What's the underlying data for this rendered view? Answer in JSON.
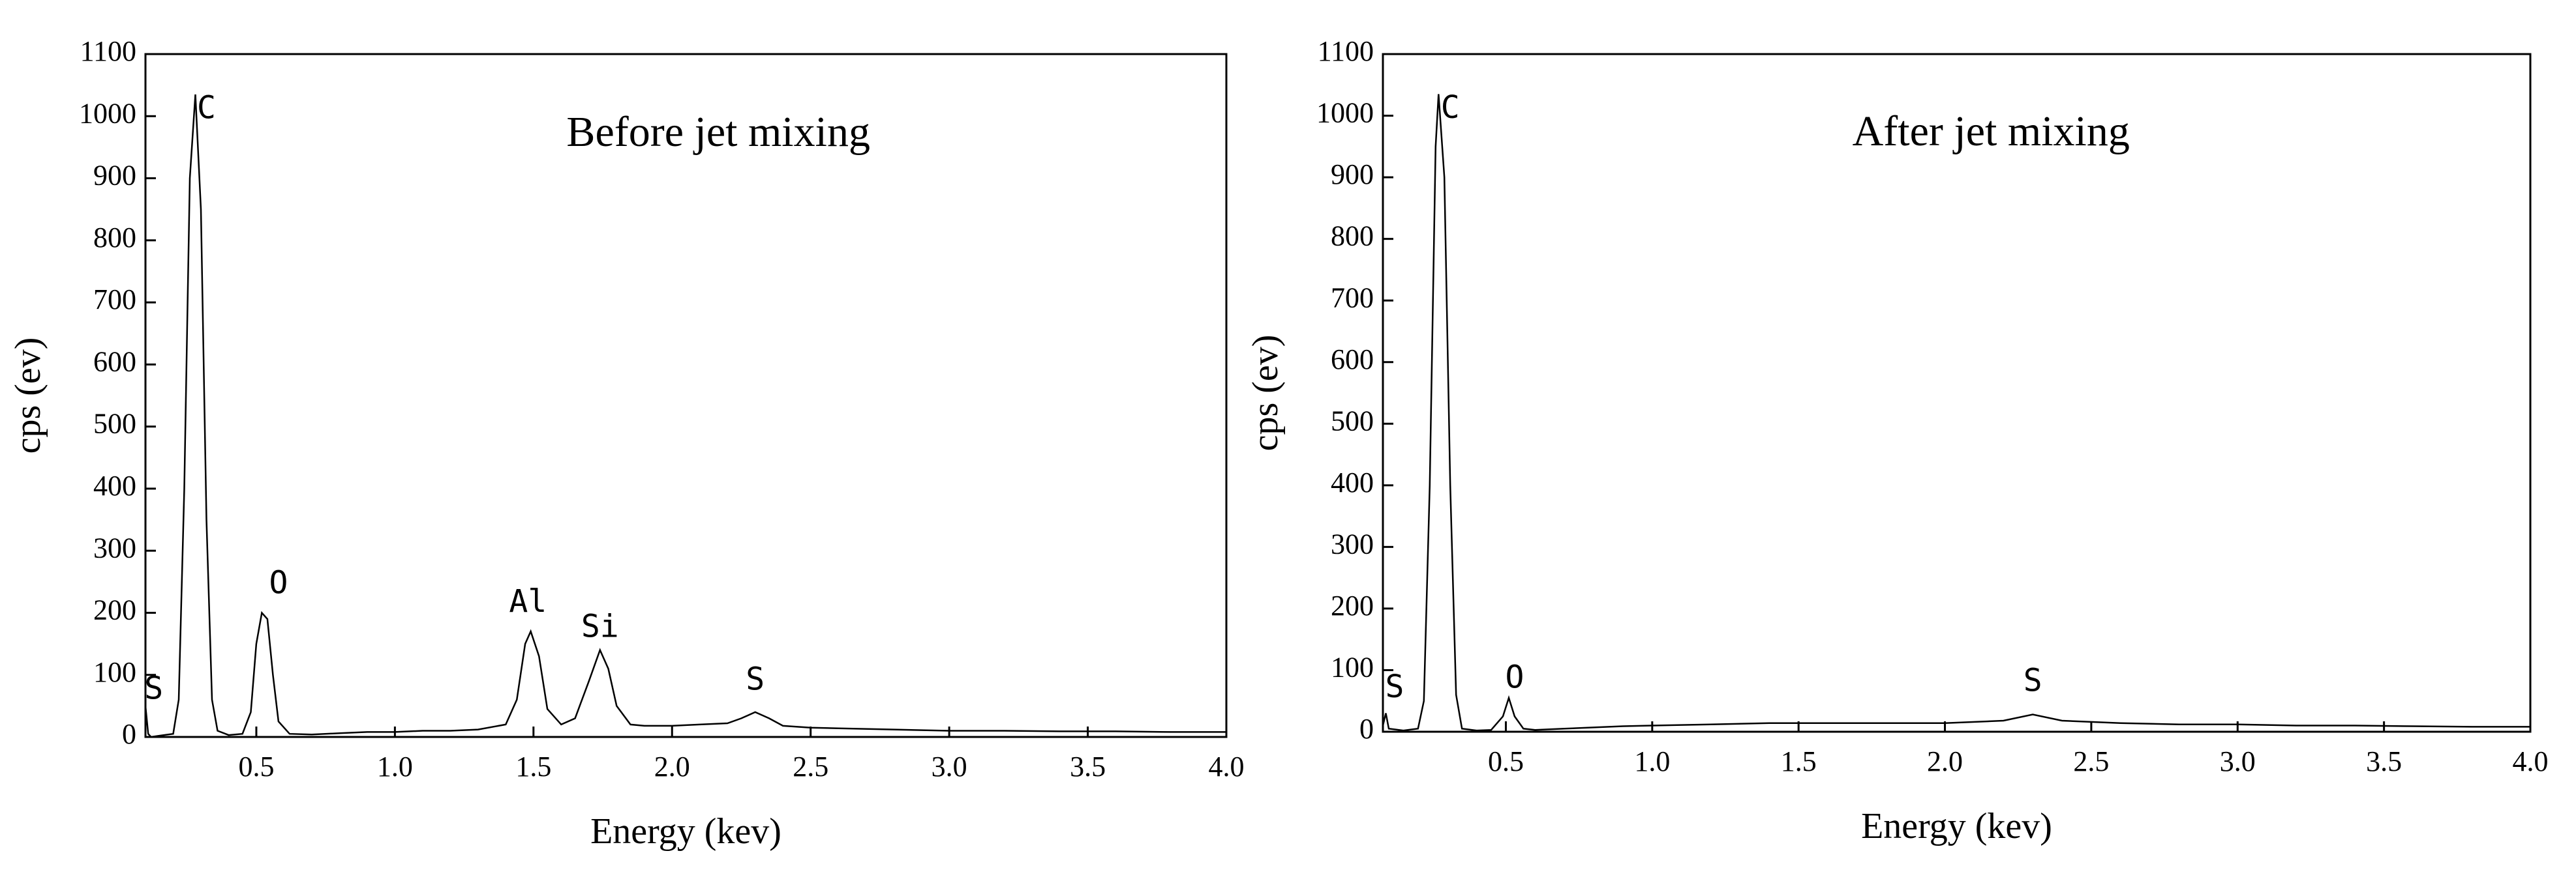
{
  "chart_data": [
    {
      "type": "line",
      "title": "Before jet mixing",
      "xlabel": "Energy (kev)",
      "ylabel": "cps (ev)",
      "color": "#000000",
      "xlim": [
        0.1,
        4.0
      ],
      "ylim": [
        0,
        1100
      ],
      "xticks": [
        0.5,
        {
          "value": 1,
          "label": "1.0"
        },
        1.5,
        {
          "value": 2,
          "label": "2.0"
        },
        2.5,
        {
          "value": 3,
          "label": "3.0"
        },
        3.5,
        {
          "value": 4,
          "label": "4.0"
        }
      ],
      "yticks": [
        0,
        100,
        200,
        300,
        400,
        500,
        600,
        700,
        800,
        900,
        1000,
        1100
      ],
      "x": [
        0.1,
        0.11,
        0.12,
        0.15,
        0.2,
        0.22,
        0.24,
        0.26,
        0.28,
        0.3,
        0.32,
        0.34,
        0.36,
        0.4,
        0.45,
        0.48,
        0.5,
        0.52,
        0.54,
        0.56,
        0.58,
        0.62,
        0.7,
        0.8,
        0.9,
        1.0,
        1.1,
        1.2,
        1.3,
        1.4,
        1.44,
        1.47,
        1.49,
        1.52,
        1.55,
        1.6,
        1.65,
        1.7,
        1.74,
        1.77,
        1.8,
        1.85,
        1.9,
        2.0,
        2.1,
        2.2,
        2.25,
        2.3,
        2.35,
        2.4,
        2.5,
        2.6,
        2.8,
        3.0,
        3.2,
        3.4,
        3.6,
        3.8,
        4.0
      ],
      "values": [
        50,
        5,
        0,
        2,
        5,
        60,
        400,
        900,
        1035,
        850,
        350,
        60,
        10,
        3,
        5,
        40,
        150,
        200,
        190,
        100,
        25,
        5,
        4,
        6,
        8,
        8,
        10,
        10,
        12,
        20,
        60,
        150,
        170,
        130,
        45,
        20,
        30,
        90,
        140,
        110,
        50,
        20,
        18,
        18,
        20,
        22,
        30,
        40,
        30,
        18,
        15,
        14,
        12,
        10,
        10,
        9,
        9,
        8,
        8
      ],
      "annotations": [
        {
          "text": "S",
          "x": 0.13,
          "y": 75
        },
        {
          "text": "C",
          "x": 0.32,
          "y": 1010
        },
        {
          "text": "O",
          "x": 0.58,
          "y": 245
        },
        {
          "text": "Al",
          "x": 1.48,
          "y": 215
        },
        {
          "text": "Si",
          "x": 1.74,
          "y": 175
        },
        {
          "text": "S",
          "x": 2.3,
          "y": 90
        }
      ]
    },
    {
      "type": "line",
      "title": "After jet mixing",
      "xlabel": "Energy (kev)",
      "ylabel": "cps (ev)",
      "color": "#000000",
      "xlim": [
        0.08,
        4.0
      ],
      "ylim": [
        0,
        1100
      ],
      "xticks": [
        0.5,
        {
          "value": 1,
          "label": "1.0"
        },
        1.5,
        {
          "value": 2,
          "label": "2.0"
        },
        2.5,
        {
          "value": 3,
          "label": "3.0"
        },
        3.5,
        {
          "value": 4,
          "label": "4.0"
        }
      ],
      "yticks": [
        0,
        100,
        200,
        300,
        400,
        500,
        600,
        700,
        800,
        900,
        1000,
        1100
      ],
      "x": [
        0.08,
        0.09,
        0.1,
        0.15,
        0.2,
        0.22,
        0.24,
        0.26,
        0.27,
        0.29,
        0.31,
        0.33,
        0.35,
        0.4,
        0.45,
        0.49,
        0.51,
        0.53,
        0.56,
        0.6,
        0.7,
        0.8,
        0.9,
        1.0,
        1.2,
        1.4,
        1.6,
        1.8,
        2.0,
        2.2,
        2.3,
        2.4,
        2.6,
        2.8,
        3.0,
        3.2,
        3.4,
        3.6,
        3.8,
        4.0
      ],
      "values": [
        10,
        30,
        5,
        2,
        5,
        50,
        400,
        950,
        1035,
        900,
        400,
        60,
        5,
        2,
        3,
        25,
        55,
        25,
        5,
        3,
        5,
        7,
        9,
        10,
        12,
        14,
        14,
        14,
        14,
        18,
        28,
        18,
        14,
        12,
        12,
        10,
        10,
        9,
        8,
        8
      ],
      "annotations": [
        {
          "text": "S",
          "x": 0.12,
          "y": 70
        },
        {
          "text": "C",
          "x": 0.31,
          "y": 1010
        },
        {
          "text": "O",
          "x": 0.53,
          "y": 85
        },
        {
          "text": "S",
          "x": 2.3,
          "y": 80
        }
      ]
    }
  ]
}
